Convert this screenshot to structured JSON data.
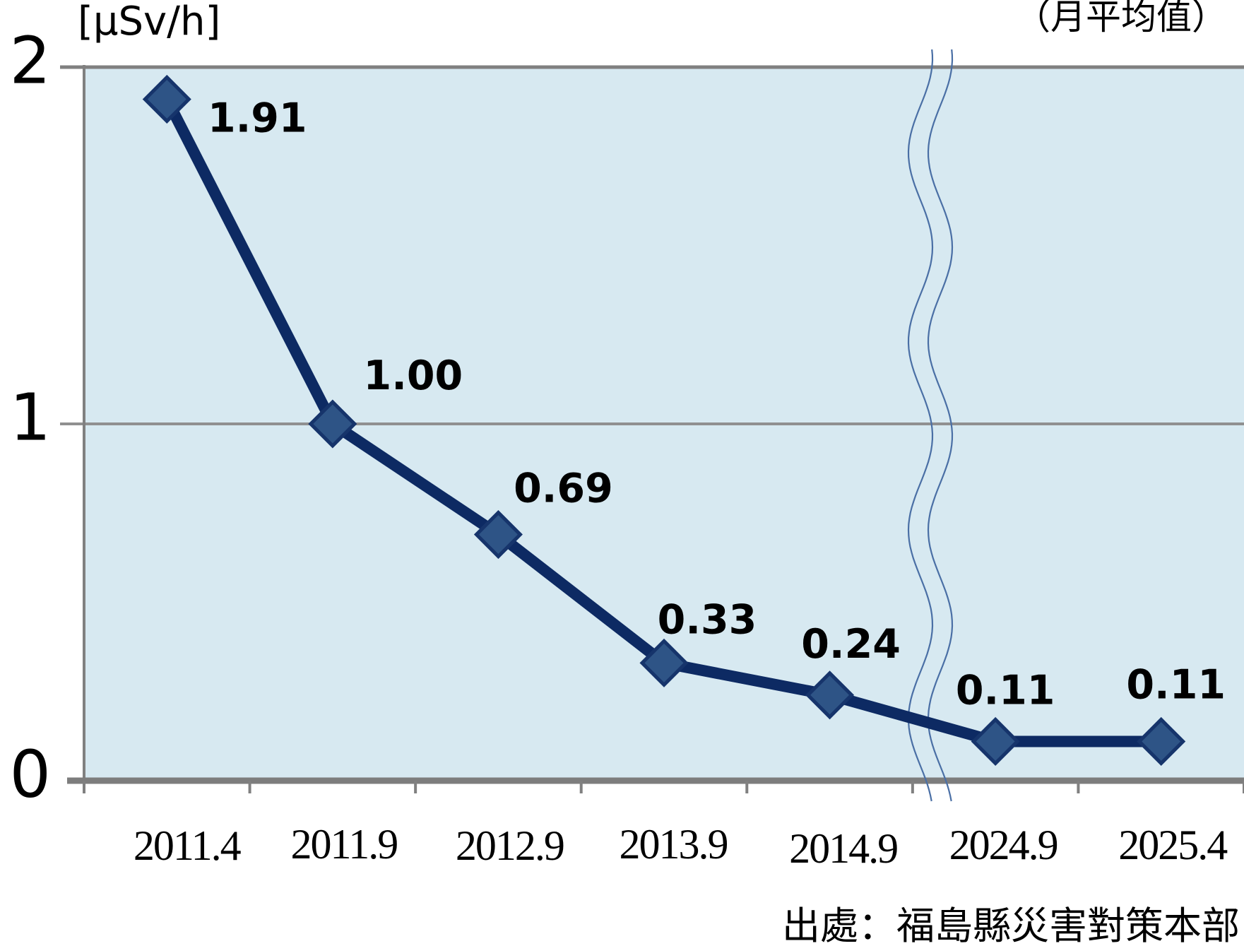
{
  "chart_data": {
    "type": "line",
    "unit_label": "[μSv/h]",
    "annotation": "（月平均值）",
    "source": "出處：福島縣災害對策本部",
    "categories": [
      "2011.4",
      "2011.9",
      "2012.9",
      "2013.9",
      "2014.9",
      "2024.9",
      "2025.4"
    ],
    "values": [
      1.91,
      1.0,
      0.69,
      0.33,
      0.24,
      0.11,
      0.11
    ],
    "point_labels": [
      "1.91",
      "1.00",
      "0.69",
      "0.33",
      "0.24",
      "0.11",
      "0.11"
    ],
    "y_ticks": [
      0,
      1,
      2
    ],
    "y_tick_labels": [
      "0",
      "1",
      "2"
    ],
    "ylim": [
      0,
      2
    ],
    "grid": "horizontal gridline at 1",
    "legend": "none",
    "axis_break": {
      "after_category": "2014.9",
      "style": "double wavy line"
    },
    "colors": {
      "line": "#0d2a63",
      "marker_fill": "#2e5486",
      "marker_stroke": "#16346b",
      "plot_background": "#d7e9f1",
      "axis": "#808080",
      "gridline": "#909090",
      "break_line": "#4a6fa5",
      "label_text": "#000000"
    }
  }
}
